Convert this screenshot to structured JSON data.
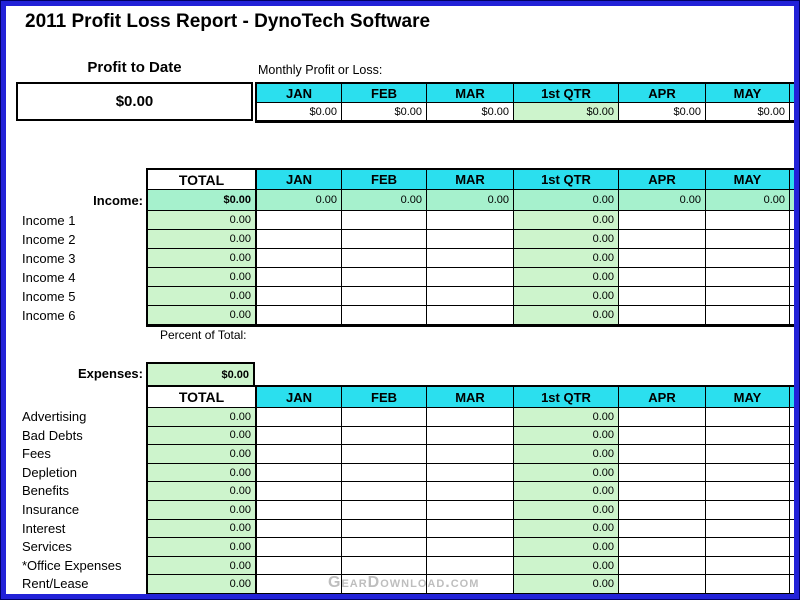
{
  "title": "2011 Profit Loss Report - DynoTech Software",
  "watermark": "GearDownload.com",
  "months": [
    "JAN",
    "FEB",
    "MAR",
    "1st QTR",
    "APR",
    "MAY"
  ],
  "colors": {
    "header_cyan": "#2bdfee",
    "income_total_teal": "#a6f1cd",
    "cell_green": "#cdf4cc",
    "page_border_blue": "#2222d8"
  },
  "summary": {
    "label": "Profit to Date",
    "value": "$0.00",
    "monthly_label": "Monthly Profit or Loss:",
    "values": [
      "$0.00",
      "$0.00",
      "$0.00",
      "$0.00",
      "$0.00",
      "$0.00"
    ]
  },
  "income": {
    "section_label": "Income:",
    "total_header": "TOTAL",
    "total_row": {
      "total": "$0.00",
      "values": [
        "0.00",
        "0.00",
        "0.00",
        "0.00",
        "0.00",
        "0.00"
      ]
    },
    "rows": [
      {
        "label": "Income 1",
        "total": "0.00",
        "qtr": "0.00"
      },
      {
        "label": "Income 2",
        "total": "0.00",
        "qtr": "0.00"
      },
      {
        "label": "Income 3",
        "total": "0.00",
        "qtr": "0.00"
      },
      {
        "label": "Income 4",
        "total": "0.00",
        "qtr": "0.00"
      },
      {
        "label": "Income 5",
        "total": "0.00",
        "qtr": "0.00"
      },
      {
        "label": "Income 6",
        "total": "0.00",
        "qtr": "0.00"
      }
    ],
    "footer_label": "Percent of Total:"
  },
  "expenses": {
    "section_label": "Expenses:",
    "total": "$0.00",
    "total_header": "TOTAL",
    "rows": [
      {
        "label": "Advertising",
        "total": "0.00",
        "qtr": "0.00"
      },
      {
        "label": "Bad Debts",
        "total": "0.00",
        "qtr": "0.00"
      },
      {
        "label": "Fees",
        "total": "0.00",
        "qtr": "0.00"
      },
      {
        "label": "Depletion",
        "total": "0.00",
        "qtr": "0.00"
      },
      {
        "label": "Benefits",
        "total": "0.00",
        "qtr": "0.00"
      },
      {
        "label": "Insurance",
        "total": "0.00",
        "qtr": "0.00"
      },
      {
        "label": "Interest",
        "total": "0.00",
        "qtr": "0.00"
      },
      {
        "label": "Services",
        "total": "0.00",
        "qtr": "0.00"
      },
      {
        "label": "*Office Expenses",
        "total": "0.00",
        "qtr": "0.00"
      },
      {
        "label": "Rent/Lease",
        "total": "0.00",
        "qtr": "0.00"
      }
    ]
  }
}
